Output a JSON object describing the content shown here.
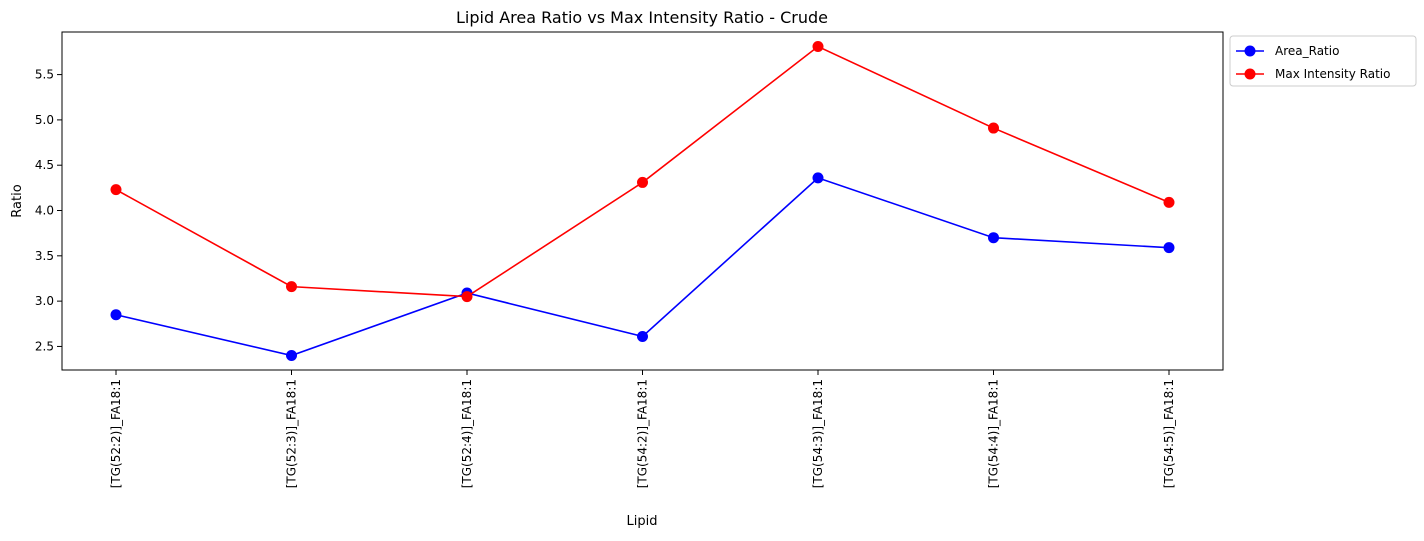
{
  "chart_data": {
    "type": "line",
    "title": "Lipid Area Ratio vs Max Intensity Ratio - Crude",
    "xlabel": "Lipid",
    "ylabel": "Ratio",
    "categories": [
      "[TG(52:2)]_FA18:1",
      "[TG(52:3)]_FA18:1",
      "[TG(52:4)]_FA18:1",
      "[TG(54:2)]_FA18:1",
      "[TG(54:3)]_FA18:1",
      "[TG(54:4)]_FA18:1",
      "[TG(54:5)]_FA18:1"
    ],
    "series": [
      {
        "name": "Area_Ratio",
        "color": "#0000ff",
        "marker": "circle",
        "values": [
          2.85,
          2.4,
          3.09,
          2.61,
          4.36,
          3.7,
          3.59
        ]
      },
      {
        "name": "Max Intensity Ratio",
        "color": "#ff0000",
        "marker": "circle",
        "values": [
          4.23,
          3.16,
          3.05,
          4.31,
          5.81,
          4.91,
          4.09
        ]
      }
    ],
    "ylim": [
      2.24,
      5.97
    ],
    "yticks": [
      2.5,
      3.0,
      3.5,
      4.0,
      4.5,
      5.0,
      5.5
    ],
    "ytick_labels": [
      "2.5",
      "3.0",
      "3.5",
      "4.0",
      "4.5",
      "5.0",
      "5.5"
    ],
    "grid": false,
    "legend_position": "outside-top-right"
  }
}
